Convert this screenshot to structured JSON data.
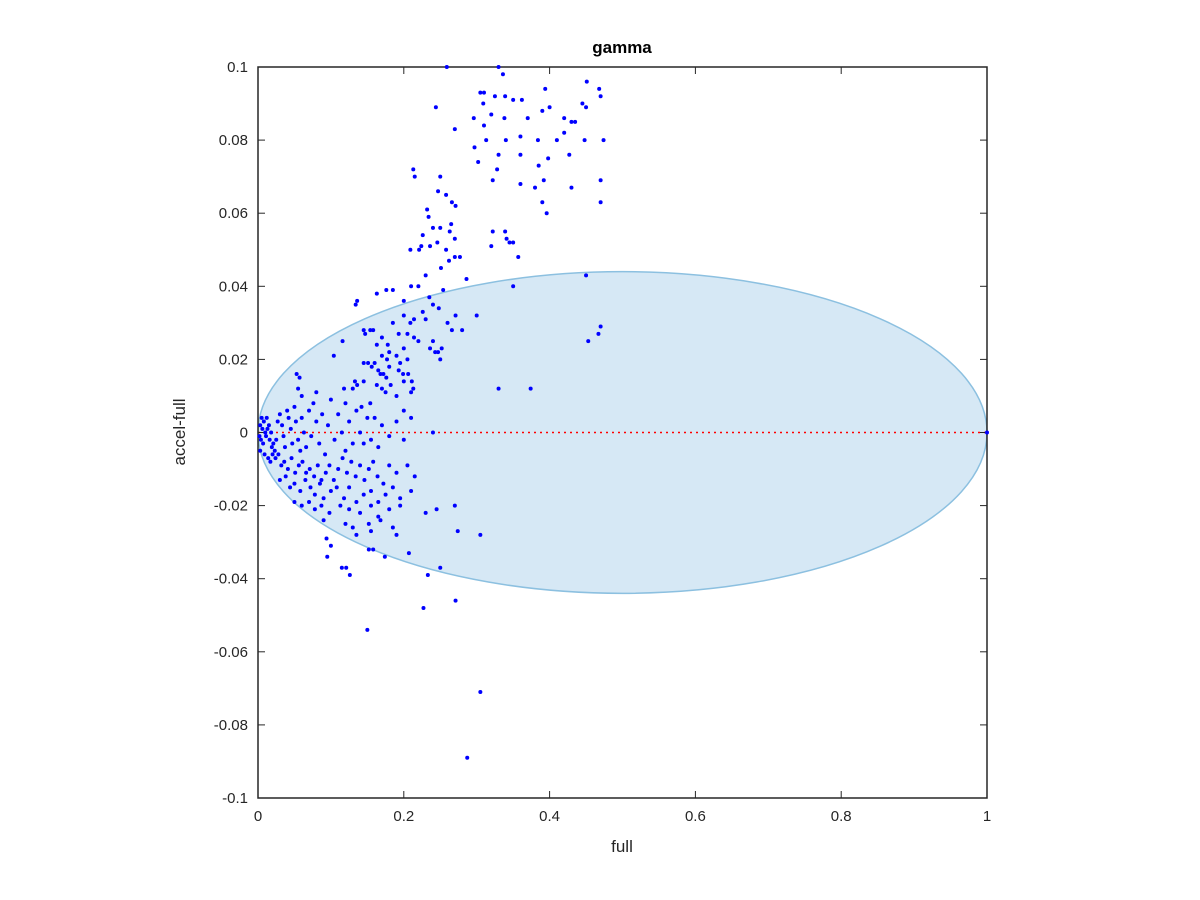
{
  "chart_data": {
    "type": "scatter",
    "title": "gamma",
    "xlabel": "full",
    "ylabel": "accel-full",
    "xlim": [
      0,
      1
    ],
    "ylim": [
      -0.1,
      0.1
    ],
    "x_ticks": [
      "0",
      "0.2",
      "0.4",
      "0.6",
      "0.8",
      "1"
    ],
    "y_ticks": [
      "-0.1",
      "-0.08",
      "-0.06",
      "-0.04",
      "-0.02",
      "0",
      "0.02",
      "0.04",
      "0.06",
      "0.08",
      "0.1"
    ],
    "grid": false,
    "colors": {
      "points": "#0000ff",
      "ellipse_fill": "#d6e8f5",
      "ellipse_stroke": "#8cc0e0",
      "reference_line": "#ff0000",
      "axes": "#262626"
    },
    "reference_line": {
      "y": 0,
      "style": "dotted"
    },
    "ellipse": {
      "cx": 0.5,
      "cy": 0.0,
      "rx": 0.5,
      "ry": 0.044
    },
    "points": [
      [
        1.0,
        0.0
      ],
      [
        0.259,
        0.1
      ],
      [
        0.33,
        0.1
      ],
      [
        0.336,
        0.098
      ],
      [
        0.305,
        0.093
      ],
      [
        0.31,
        0.093
      ],
      [
        0.325,
        0.092
      ],
      [
        0.339,
        0.092
      ],
      [
        0.35,
        0.091
      ],
      [
        0.362,
        0.091
      ],
      [
        0.394,
        0.094
      ],
      [
        0.451,
        0.096
      ],
      [
        0.468,
        0.094
      ],
      [
        0.244,
        0.089
      ],
      [
        0.27,
        0.083
      ],
      [
        0.309,
        0.09
      ],
      [
        0.32,
        0.087
      ],
      [
        0.338,
        0.086
      ],
      [
        0.37,
        0.086
      ],
      [
        0.39,
        0.088
      ],
      [
        0.4,
        0.089
      ],
      [
        0.42,
        0.086
      ],
      [
        0.43,
        0.085
      ],
      [
        0.445,
        0.09
      ],
      [
        0.45,
        0.089
      ],
      [
        0.47,
        0.092
      ],
      [
        0.296,
        0.086
      ],
      [
        0.31,
        0.084
      ],
      [
        0.313,
        0.08
      ],
      [
        0.297,
        0.078
      ],
      [
        0.34,
        0.08
      ],
      [
        0.36,
        0.081
      ],
      [
        0.384,
        0.08
      ],
      [
        0.41,
        0.08
      ],
      [
        0.42,
        0.082
      ],
      [
        0.435,
        0.085
      ],
      [
        0.448,
        0.08
      ],
      [
        0.474,
        0.08
      ],
      [
        0.302,
        0.074
      ],
      [
        0.33,
        0.076
      ],
      [
        0.36,
        0.076
      ],
      [
        0.385,
        0.073
      ],
      [
        0.398,
        0.075
      ],
      [
        0.427,
        0.076
      ],
      [
        0.328,
        0.072
      ],
      [
        0.322,
        0.069
      ],
      [
        0.213,
        0.072
      ],
      [
        0.215,
        0.07
      ],
      [
        0.25,
        0.07
      ],
      [
        0.247,
        0.066
      ],
      [
        0.258,
        0.065
      ],
      [
        0.36,
        0.068
      ],
      [
        0.38,
        0.067
      ],
      [
        0.392,
        0.069
      ],
      [
        0.43,
        0.067
      ],
      [
        0.47,
        0.069
      ],
      [
        0.47,
        0.063
      ],
      [
        0.39,
        0.063
      ],
      [
        0.396,
        0.06
      ],
      [
        0.266,
        0.063
      ],
      [
        0.271,
        0.062
      ],
      [
        0.232,
        0.061
      ],
      [
        0.234,
        0.059
      ],
      [
        0.24,
        0.056
      ],
      [
        0.25,
        0.056
      ],
      [
        0.265,
        0.057
      ],
      [
        0.263,
        0.055
      ],
      [
        0.27,
        0.053
      ],
      [
        0.226,
        0.054
      ],
      [
        0.224,
        0.051
      ],
      [
        0.236,
        0.051
      ],
      [
        0.246,
        0.052
      ],
      [
        0.209,
        0.05
      ],
      [
        0.221,
        0.05
      ],
      [
        0.258,
        0.05
      ],
      [
        0.262,
        0.047
      ],
      [
        0.27,
        0.048
      ],
      [
        0.277,
        0.048
      ],
      [
        0.322,
        0.055
      ],
      [
        0.339,
        0.055
      ],
      [
        0.341,
        0.053
      ],
      [
        0.345,
        0.052
      ],
      [
        0.35,
        0.052
      ],
      [
        0.32,
        0.051
      ],
      [
        0.357,
        0.048
      ],
      [
        0.251,
        0.045
      ],
      [
        0.286,
        0.042
      ],
      [
        0.23,
        0.043
      ],
      [
        0.35,
        0.04
      ],
      [
        0.45,
        0.043
      ],
      [
        0.176,
        0.039
      ],
      [
        0.185,
        0.039
      ],
      [
        0.21,
        0.04
      ],
      [
        0.22,
        0.04
      ],
      [
        0.163,
        0.038
      ],
      [
        0.2,
        0.036
      ],
      [
        0.136,
        0.036
      ],
      [
        0.134,
        0.035
      ],
      [
        0.254,
        0.039
      ],
      [
        0.235,
        0.037
      ],
      [
        0.24,
        0.035
      ],
      [
        0.248,
        0.034
      ],
      [
        0.226,
        0.033
      ],
      [
        0.271,
        0.032
      ],
      [
        0.3,
        0.032
      ],
      [
        0.2,
        0.032
      ],
      [
        0.185,
        0.03
      ],
      [
        0.209,
        0.03
      ],
      [
        0.214,
        0.031
      ],
      [
        0.23,
        0.031
      ],
      [
        0.26,
        0.03
      ],
      [
        0.266,
        0.028
      ],
      [
        0.28,
        0.028
      ],
      [
        0.158,
        0.028
      ],
      [
        0.145,
        0.028
      ],
      [
        0.147,
        0.027
      ],
      [
        0.154,
        0.028
      ],
      [
        0.17,
        0.026
      ],
      [
        0.193,
        0.027
      ],
      [
        0.205,
        0.027
      ],
      [
        0.214,
        0.026
      ],
      [
        0.22,
        0.025
      ],
      [
        0.24,
        0.025
      ],
      [
        0.116,
        0.025
      ],
      [
        0.163,
        0.024
      ],
      [
        0.178,
        0.024
      ],
      [
        0.18,
        0.022
      ],
      [
        0.2,
        0.023
      ],
      [
        0.236,
        0.023
      ],
      [
        0.247,
        0.022
      ],
      [
        0.252,
        0.023
      ],
      [
        0.25,
        0.02
      ],
      [
        0.243,
        0.022
      ],
      [
        0.17,
        0.021
      ],
      [
        0.177,
        0.02
      ],
      [
        0.19,
        0.021
      ],
      [
        0.195,
        0.019
      ],
      [
        0.205,
        0.02
      ],
      [
        0.104,
        0.021
      ],
      [
        0.156,
        0.018
      ],
      [
        0.165,
        0.017
      ],
      [
        0.168,
        0.016
      ],
      [
        0.172,
        0.016
      ],
      [
        0.176,
        0.015
      ],
      [
        0.18,
        0.018
      ],
      [
        0.193,
        0.017
      ],
      [
        0.145,
        0.019
      ],
      [
        0.151,
        0.019
      ],
      [
        0.16,
        0.019
      ],
      [
        0.199,
        0.016
      ],
      [
        0.206,
        0.016
      ],
      [
        0.211,
        0.014
      ],
      [
        0.2,
        0.014
      ],
      [
        0.213,
        0.012
      ],
      [
        0.182,
        0.013
      ],
      [
        0.17,
        0.012
      ],
      [
        0.163,
        0.013
      ],
      [
        0.145,
        0.014
      ],
      [
        0.136,
        0.013
      ],
      [
        0.133,
        0.014
      ],
      [
        0.13,
        0.012
      ],
      [
        0.118,
        0.012
      ],
      [
        0.175,
        0.011
      ],
      [
        0.19,
        0.01
      ],
      [
        0.21,
        0.011
      ],
      [
        0.053,
        0.016
      ],
      [
        0.057,
        0.015
      ],
      [
        0.055,
        0.012
      ],
      [
        0.06,
        0.01
      ],
      [
        0.08,
        0.011
      ],
      [
        0.12,
        0.008
      ],
      [
        0.142,
        0.007
      ],
      [
        0.154,
        0.008
      ],
      [
        0.2,
        0.006
      ],
      [
        0.33,
        0.012
      ],
      [
        0.374,
        0.012
      ],
      [
        0.453,
        0.025
      ],
      [
        0.467,
        0.027
      ],
      [
        0.47,
        0.029
      ],
      [
        0.005,
        0.004
      ],
      [
        0.008,
        0.003
      ],
      [
        0.012,
        0.004
      ],
      [
        0.015,
        0.002
      ],
      [
        0.003,
        0.002
      ],
      [
        0.006,
        0.001
      ],
      [
        0.01,
        0.0
      ],
      [
        0.002,
        -0.001
      ],
      [
        0.004,
        -0.002
      ],
      [
        0.007,
        -0.003
      ],
      [
        0.011,
        -0.001
      ],
      [
        0.013,
        0.001
      ],
      [
        0.016,
        -0.002
      ],
      [
        0.018,
        0.0
      ],
      [
        0.019,
        -0.004
      ],
      [
        0.021,
        -0.003
      ],
      [
        0.023,
        -0.005
      ],
      [
        0.02,
        -0.006
      ],
      [
        0.025,
        -0.002
      ],
      [
        0.027,
        0.003
      ],
      [
        0.03,
        0.005
      ],
      [
        0.033,
        0.002
      ],
      [
        0.035,
        -0.001
      ],
      [
        0.037,
        -0.004
      ],
      [
        0.04,
        0.006
      ],
      [
        0.042,
        0.004
      ],
      [
        0.045,
        0.001
      ],
      [
        0.047,
        -0.003
      ],
      [
        0.05,
        0.007
      ],
      [
        0.052,
        0.003
      ],
      [
        0.055,
        -0.002
      ],
      [
        0.058,
        -0.005
      ],
      [
        0.06,
        0.004
      ],
      [
        0.063,
        0.0
      ],
      [
        0.066,
        -0.004
      ],
      [
        0.07,
        0.006
      ],
      [
        0.073,
        -0.001
      ],
      [
        0.076,
        0.008
      ],
      [
        0.08,
        0.003
      ],
      [
        0.084,
        -0.003
      ],
      [
        0.088,
        0.005
      ],
      [
        0.092,
        -0.006
      ],
      [
        0.096,
        0.002
      ],
      [
        0.1,
        0.009
      ],
      [
        0.105,
        -0.002
      ],
      [
        0.11,
        0.005
      ],
      [
        0.115,
        0.0
      ],
      [
        0.12,
        -0.005
      ],
      [
        0.125,
        0.003
      ],
      [
        0.13,
        -0.003
      ],
      [
        0.135,
        0.006
      ],
      [
        0.14,
        0.0
      ],
      [
        0.145,
        -0.003
      ],
      [
        0.15,
        0.004
      ],
      [
        0.155,
        -0.002
      ],
      [
        0.16,
        0.004
      ],
      [
        0.165,
        -0.004
      ],
      [
        0.17,
        0.002
      ],
      [
        0.18,
        -0.001
      ],
      [
        0.19,
        0.003
      ],
      [
        0.2,
        -0.002
      ],
      [
        0.21,
        0.004
      ],
      [
        0.003,
        -0.005
      ],
      [
        0.009,
        -0.006
      ],
      [
        0.014,
        -0.007
      ],
      [
        0.017,
        -0.008
      ],
      [
        0.024,
        -0.007
      ],
      [
        0.028,
        -0.006
      ],
      [
        0.032,
        -0.009
      ],
      [
        0.036,
        -0.008
      ],
      [
        0.041,
        -0.01
      ],
      [
        0.046,
        -0.007
      ],
      [
        0.051,
        -0.011
      ],
      [
        0.056,
        -0.009
      ],
      [
        0.061,
        -0.008
      ],
      [
        0.066,
        -0.011
      ],
      [
        0.071,
        -0.01
      ],
      [
        0.077,
        -0.012
      ],
      [
        0.082,
        -0.009
      ],
      [
        0.087,
        -0.013
      ],
      [
        0.093,
        -0.011
      ],
      [
        0.098,
        -0.009
      ],
      [
        0.104,
        -0.013
      ],
      [
        0.11,
        -0.01
      ],
      [
        0.116,
        -0.007
      ],
      [
        0.122,
        -0.011
      ],
      [
        0.128,
        -0.008
      ],
      [
        0.134,
        -0.012
      ],
      [
        0.14,
        -0.009
      ],
      [
        0.146,
        -0.013
      ],
      [
        0.152,
        -0.01
      ],
      [
        0.158,
        -0.008
      ],
      [
        0.164,
        -0.012
      ],
      [
        0.172,
        -0.014
      ],
      [
        0.18,
        -0.009
      ],
      [
        0.19,
        -0.011
      ],
      [
        0.205,
        -0.009
      ],
      [
        0.215,
        -0.012
      ],
      [
        0.03,
        -0.013
      ],
      [
        0.038,
        -0.012
      ],
      [
        0.044,
        -0.015
      ],
      [
        0.05,
        -0.014
      ],
      [
        0.058,
        -0.016
      ],
      [
        0.065,
        -0.013
      ],
      [
        0.072,
        -0.015
      ],
      [
        0.078,
        -0.017
      ],
      [
        0.085,
        -0.014
      ],
      [
        0.09,
        -0.018
      ],
      [
        0.1,
        -0.016
      ],
      [
        0.108,
        -0.015
      ],
      [
        0.118,
        -0.018
      ],
      [
        0.125,
        -0.015
      ],
      [
        0.135,
        -0.019
      ],
      [
        0.145,
        -0.017
      ],
      [
        0.155,
        -0.016
      ],
      [
        0.165,
        -0.019
      ],
      [
        0.175,
        -0.017
      ],
      [
        0.185,
        -0.015
      ],
      [
        0.195,
        -0.018
      ],
      [
        0.21,
        -0.016
      ],
      [
        0.05,
        -0.019
      ],
      [
        0.06,
        -0.02
      ],
      [
        0.07,
        -0.019
      ],
      [
        0.078,
        -0.021
      ],
      [
        0.087,
        -0.02
      ],
      [
        0.098,
        -0.022
      ],
      [
        0.113,
        -0.02
      ],
      [
        0.125,
        -0.021
      ],
      [
        0.14,
        -0.022
      ],
      [
        0.155,
        -0.02
      ],
      [
        0.165,
        -0.023
      ],
      [
        0.18,
        -0.021
      ],
      [
        0.195,
        -0.02
      ],
      [
        0.23,
        -0.022
      ],
      [
        0.245,
        -0.021
      ],
      [
        0.27,
        -0.02
      ],
      [
        0.09,
        -0.024
      ],
      [
        0.12,
        -0.025
      ],
      [
        0.13,
        -0.026
      ],
      [
        0.152,
        -0.025
      ],
      [
        0.168,
        -0.024
      ],
      [
        0.185,
        -0.026
      ],
      [
        0.274,
        -0.027
      ],
      [
        0.305,
        -0.028
      ],
      [
        0.094,
        -0.029
      ],
      [
        0.135,
        -0.028
      ],
      [
        0.155,
        -0.027
      ],
      [
        0.19,
        -0.028
      ],
      [
        0.1,
        -0.031
      ],
      [
        0.152,
        -0.032
      ],
      [
        0.158,
        -0.032
      ],
      [
        0.207,
        -0.033
      ],
      [
        0.174,
        -0.034
      ],
      [
        0.095,
        -0.034
      ],
      [
        0.121,
        -0.037
      ],
      [
        0.115,
        -0.037
      ],
      [
        0.126,
        -0.039
      ],
      [
        0.25,
        -0.037
      ],
      [
        0.233,
        -0.039
      ],
      [
        0.271,
        -0.046
      ],
      [
        0.227,
        -0.048
      ],
      [
        0.15,
        -0.054
      ],
      [
        0.305,
        -0.071
      ],
      [
        0.287,
        -0.089
      ],
      [
        0.24,
        0.0
      ]
    ]
  }
}
